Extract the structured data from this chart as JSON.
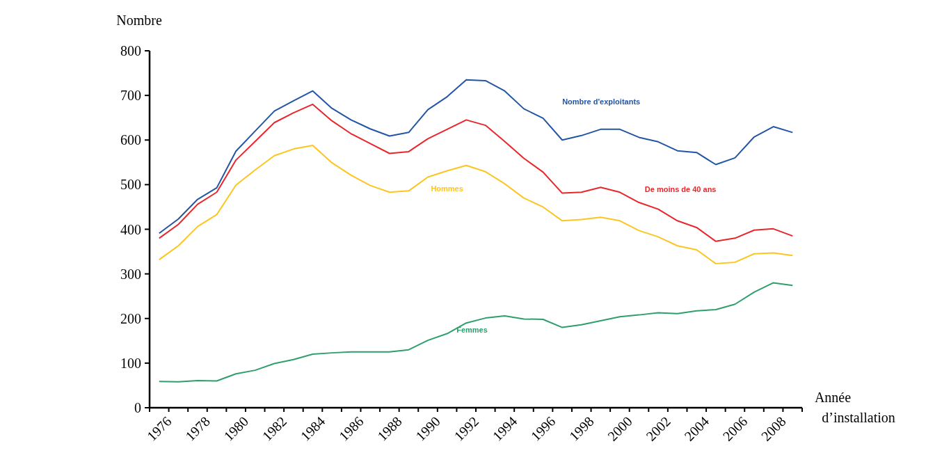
{
  "chart_data": {
    "type": "line",
    "ylabel": "Nombre",
    "xlabel": "Année\nd’installation",
    "categories": [
      "1976",
      null,
      "1978",
      null,
      "1980",
      null,
      "1982",
      null,
      "1984",
      null,
      "1986",
      null,
      "1988",
      null,
      "1990",
      null,
      "1992",
      null,
      "1994",
      null,
      "1996",
      null,
      "1998",
      null,
      "2000",
      null,
      "2002",
      null,
      "2004",
      null,
      "2006",
      null,
      "2008",
      null
    ],
    "series": [
      {
        "name": "Nombre d'exploitants",
        "color": "#2255a4",
        "values": [
          391,
          423,
          467,
          493,
          575,
          620,
          665,
          688,
          710,
          671,
          645,
          625,
          609,
          617,
          668,
          697,
          735,
          733,
          710,
          670,
          649,
          600,
          610,
          624,
          624,
          606,
          596,
          576,
          572,
          545,
          560,
          607,
          630,
          617
        ]
      },
      {
        "name": "De moins de 40 ans",
        "color": "#e8262b",
        "values": [
          380,
          411,
          456,
          483,
          555,
          597,
          639,
          661,
          680,
          643,
          614,
          592,
          570,
          574,
          603,
          624,
          645,
          633,
          597,
          559,
          528,
          481,
          483,
          494,
          483,
          460,
          445,
          419,
          404,
          373,
          380,
          398,
          401,
          385
        ]
      },
      {
        "name": "Hommes",
        "color": "#fcc520",
        "values": [
          332,
          363,
          406,
          433,
          499,
          533,
          565,
          580,
          588,
          549,
          521,
          498,
          483,
          486,
          517,
          531,
          543,
          529,
          502,
          470,
          450,
          419,
          422,
          427,
          419,
          397,
          383,
          363,
          354,
          323,
          326,
          345,
          347,
          341
        ]
      },
      {
        "name": "Femmes",
        "color": "#2e9e6b",
        "values": [
          59,
          58,
          61,
          60,
          76,
          84,
          99,
          108,
          120,
          123,
          125,
          125,
          125,
          130,
          151,
          166,
          190,
          201,
          206,
          199,
          198,
          180,
          186,
          195,
          204,
          208,
          213,
          211,
          217,
          220,
          232,
          259,
          280,
          274
        ]
      }
    ],
    "ylim": [
      0,
      800
    ],
    "yticks": [
      0,
      100,
      200,
      300,
      400,
      500,
      600,
      700,
      800
    ],
    "grid": false,
    "legend": false,
    "marker": "none",
    "line_style": "solid"
  }
}
